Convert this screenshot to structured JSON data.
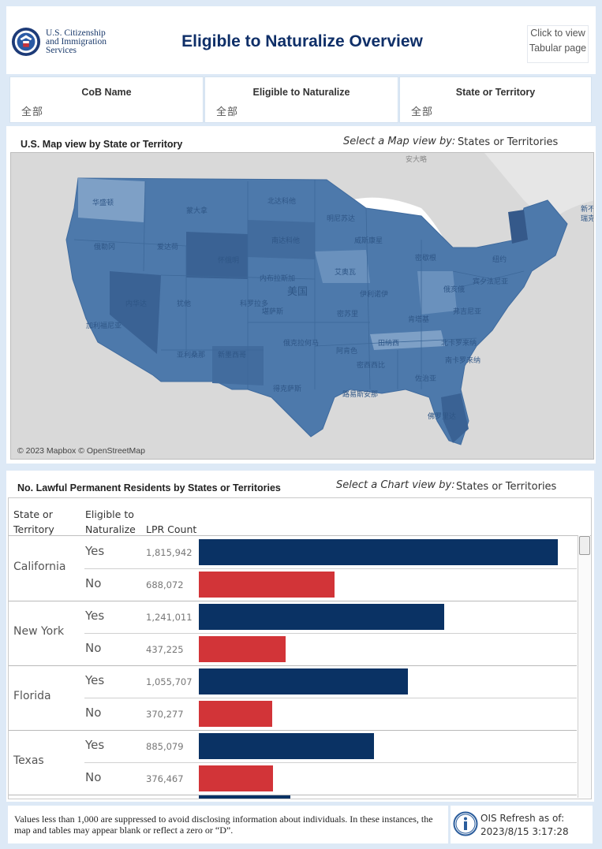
{
  "header": {
    "agency_line1": "U.S. Citizenship",
    "agency_line2": "and Immigration",
    "agency_line3": "Services",
    "title": "Eligible to Naturalize Overview",
    "tabular_line1": "Click to view",
    "tabular_line2": "Tabular page"
  },
  "filters": [
    {
      "label": "CoB Name",
      "value": "全部"
    },
    {
      "label": "Eligible to Naturalize",
      "value": "全部"
    },
    {
      "label": "State or Territory",
      "value": "全部"
    }
  ],
  "map": {
    "title": "U.S. Map view by State or Territory",
    "select_label": "Select a Map view by:",
    "select_value": "States or Territories",
    "attribution": "© 2023 Mapbox © OpenStreetMap",
    "labels": [
      "安大略",
      "华盛顿",
      "蒙大拿",
      "北达科他",
      "明尼苏达",
      "新不伦",
      "瑞克省",
      "俄勒冈",
      "爱达荷",
      "怀俄明",
      "南达科他",
      "威斯康星",
      "密歇根",
      "纽约",
      "内华达",
      "内布拉斯加",
      "艾奥瓦",
      "伊利诺伊",
      "俄亥俄",
      "宾夕法尼亚",
      "犹他",
      "科罗拉多",
      "美国",
      "加利福尼亚",
      "堪萨斯",
      "密苏里",
      "肯塔基",
      "弗吉尼亚",
      "田纳西",
      "北卡罗来纳",
      "亚利桑那",
      "新墨西哥",
      "俄克拉何马",
      "阿肯色",
      "南卡罗来纳",
      "密西西比",
      "佐治亚",
      "得克萨斯",
      "路易斯安那",
      "佛罗里达"
    ],
    "colors": {
      "fill": "#4d79ab",
      "light": "#7ea0c6",
      "dark": "#3a6294",
      "land": "#dcdcdc",
      "water": "#ffffff"
    }
  },
  "chart": {
    "title": "No. Lawful Permanent Residents by States or Territories",
    "select_label": "Select a Chart view by:",
    "select_value": "States or Territories",
    "col_state_1": "State or",
    "col_state_2": "Territory",
    "col_elig_1": "Eligible to",
    "col_elig_2": "Naturalize",
    "col_count": "LPR Count",
    "colors": {
      "yes": "#0a3264",
      "no": "#d23438"
    }
  },
  "chart_data": {
    "type": "bar",
    "orientation": "horizontal",
    "x_max": 1815942,
    "rows": [
      {
        "state": "California",
        "yes_label": "Yes",
        "yes_display": "1,815,942",
        "yes": 1815942,
        "no_label": "No",
        "no_display": "688,072",
        "no": 688072
      },
      {
        "state": "New York",
        "yes_label": "Yes",
        "yes_display": "1,241,011",
        "yes": 1241011,
        "no_label": "No",
        "no_display": "437,225",
        "no": 437225
      },
      {
        "state": "Florida",
        "yes_label": "Yes",
        "yes_display": "1,055,707",
        "yes": 1055707,
        "no_label": "No",
        "no_display": "370,277",
        "no": 370277
      },
      {
        "state": "Texas",
        "yes_label": "Yes",
        "yes_display": "885,079",
        "yes": 885079,
        "no_label": "No",
        "no_display": "376,467",
        "no": 376467
      }
    ]
  },
  "footer": {
    "note": "Values less than 1,000 are suppressed to avoid disclosing information about individuals. In these instances, the map and tables may appear blank or reflect a zero or “D”.",
    "refresh_label": "OIS Refresh as of:",
    "refresh_time": "2023/8/15 3:17:28"
  }
}
